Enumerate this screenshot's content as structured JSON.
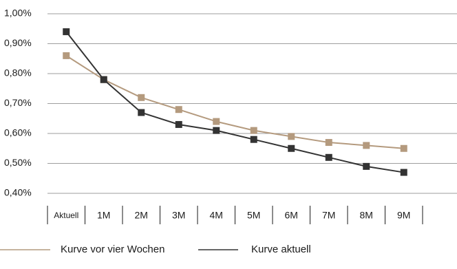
{
  "chart_data": {
    "type": "line",
    "categories": [
      "Aktuell",
      "1M",
      "2M",
      "3M",
      "4M",
      "5M",
      "6M",
      "7M",
      "8M",
      "9M"
    ],
    "y_tick_labels": [
      "1,00%",
      "0,90%",
      "0,80%",
      "0,70%",
      "0,60%",
      "0,50%",
      "0,40%"
    ],
    "ylim": [
      0.4,
      1.0
    ],
    "y_ticks": [
      1.0,
      0.9,
      0.8,
      0.7,
      0.6,
      0.5,
      0.4
    ],
    "grid": true,
    "legend_position": "bottom",
    "series": [
      {
        "name": "Kurve vor vier Wochen",
        "color": "#b49a7e",
        "marker": "square",
        "values": [
          0.86,
          0.78,
          0.72,
          0.68,
          0.64,
          0.61,
          0.59,
          0.57,
          0.56,
          0.55
        ]
      },
      {
        "name": "Kurve aktuell",
        "color": "#333333",
        "marker": "square",
        "values": [
          0.94,
          0.78,
          0.67,
          0.63,
          0.61,
          0.58,
          0.55,
          0.52,
          0.49,
          0.47
        ]
      }
    ]
  }
}
